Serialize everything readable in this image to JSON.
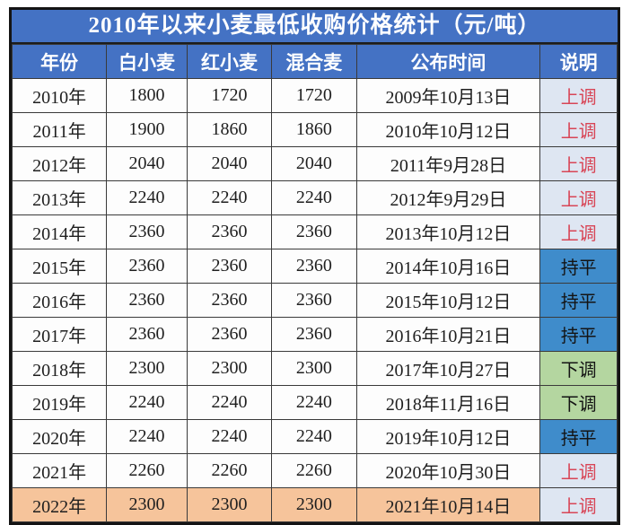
{
  "title": "2010年以来小麦最低收购价格统计（元/吨）",
  "columns": [
    "年份",
    "白小麦",
    "红小麦",
    "混合麦",
    "公布时间",
    "说明"
  ],
  "rows": [
    {
      "year": "2010年",
      "white_wheat": "1800",
      "red_wheat": "1720",
      "mixed_wheat": "1720",
      "publish_date": "2009年10月13日",
      "note": "上调",
      "note_type": "up",
      "highlight": false
    },
    {
      "year": "2011年",
      "white_wheat": "1900",
      "red_wheat": "1860",
      "mixed_wheat": "1860",
      "publish_date": "2010年10月12日",
      "note": "上调",
      "note_type": "up",
      "highlight": false
    },
    {
      "year": "2012年",
      "white_wheat": "2040",
      "red_wheat": "2040",
      "mixed_wheat": "2040",
      "publish_date": "2011年9月28日",
      "note": "上调",
      "note_type": "up",
      "highlight": false
    },
    {
      "year": "2013年",
      "white_wheat": "2240",
      "red_wheat": "2240",
      "mixed_wheat": "2240",
      "publish_date": "2012年9月29日",
      "note": "上调",
      "note_type": "up",
      "highlight": false
    },
    {
      "year": "2014年",
      "white_wheat": "2360",
      "red_wheat": "2360",
      "mixed_wheat": "2360",
      "publish_date": "2013年10月12日",
      "note": "上调",
      "note_type": "up",
      "highlight": false
    },
    {
      "year": "2015年",
      "white_wheat": "2360",
      "red_wheat": "2360",
      "mixed_wheat": "2360",
      "publish_date": "2014年10月16日",
      "note": "持平",
      "note_type": "flat",
      "highlight": false
    },
    {
      "year": "2016年",
      "white_wheat": "2360",
      "red_wheat": "2360",
      "mixed_wheat": "2360",
      "publish_date": "2015年10月12日",
      "note": "持平",
      "note_type": "flat",
      "highlight": false
    },
    {
      "year": "2017年",
      "white_wheat": "2360",
      "red_wheat": "2360",
      "mixed_wheat": "2360",
      "publish_date": "2016年10月21日",
      "note": "持平",
      "note_type": "flat",
      "highlight": false
    },
    {
      "year": "2018年",
      "white_wheat": "2300",
      "red_wheat": "2300",
      "mixed_wheat": "2300",
      "publish_date": "2017年10月27日",
      "note": "下调",
      "note_type": "down",
      "highlight": false
    },
    {
      "year": "2019年",
      "white_wheat": "2240",
      "red_wheat": "2240",
      "mixed_wheat": "2240",
      "publish_date": "2018年11月16日",
      "note": "下调",
      "note_type": "down",
      "highlight": false
    },
    {
      "year": "2020年",
      "white_wheat": "2240",
      "red_wheat": "2240",
      "mixed_wheat": "2240",
      "publish_date": "2019年10月12日",
      "note": "持平",
      "note_type": "flat",
      "highlight": false
    },
    {
      "year": "2021年",
      "white_wheat": "2260",
      "red_wheat": "2260",
      "mixed_wheat": "2260",
      "publish_date": "2020年10月30日",
      "note": "上调",
      "note_type": "up",
      "highlight": false
    },
    {
      "year": "2022年",
      "white_wheat": "2300",
      "red_wheat": "2300",
      "mixed_wheat": "2300",
      "publish_date": "2021年10月14日",
      "note": "上调",
      "note_type": "up",
      "highlight": true
    }
  ],
  "colors": {
    "header_blue": "#4472c4",
    "grid_line": "#3a3a3a",
    "outer_border": "#141414",
    "body_text": "#1f1f1f",
    "note_up_bg": "#dee6f2",
    "note_up_text": "#d84556",
    "note_flat_bg": "#3f8ccb",
    "note_down_bg": "#b4d6a0",
    "highlight_row_bg": "#f6c49b"
  },
  "chart_data": {
    "type": "table",
    "title": "2010年以来小麦最低收购价格统计（元/吨）",
    "columns": [
      "年份",
      "白小麦",
      "红小麦",
      "混合麦",
      "公布时间",
      "说明"
    ],
    "rows": [
      [
        "2010年",
        1800,
        1720,
        1720,
        "2009年10月13日",
        "上调"
      ],
      [
        "2011年",
        1900,
        1860,
        1860,
        "2010年10月12日",
        "上调"
      ],
      [
        "2012年",
        2040,
        2040,
        2040,
        "2011年9月28日",
        "上调"
      ],
      [
        "2013年",
        2240,
        2240,
        2240,
        "2012年9月29日",
        "上调"
      ],
      [
        "2014年",
        2360,
        2360,
        2360,
        "2013年10月12日",
        "上调"
      ],
      [
        "2015年",
        2360,
        2360,
        2360,
        "2014年10月16日",
        "持平"
      ],
      [
        "2016年",
        2360,
        2360,
        2360,
        "2015年10月12日",
        "持平"
      ],
      [
        "2017年",
        2360,
        2360,
        2360,
        "2016年10月21日",
        "持平"
      ],
      [
        "2018年",
        2300,
        2300,
        2300,
        "2017年10月27日",
        "下调"
      ],
      [
        "2019年",
        2240,
        2240,
        2240,
        "2018年11月16日",
        "下调"
      ],
      [
        "2020年",
        2240,
        2240,
        2240,
        "2019年10月12日",
        "持平"
      ],
      [
        "2021年",
        2260,
        2260,
        2260,
        "2020年10月30日",
        "上调"
      ],
      [
        "2022年",
        2300,
        2300,
        2300,
        "2021年10月14日",
        "上调"
      ]
    ]
  }
}
